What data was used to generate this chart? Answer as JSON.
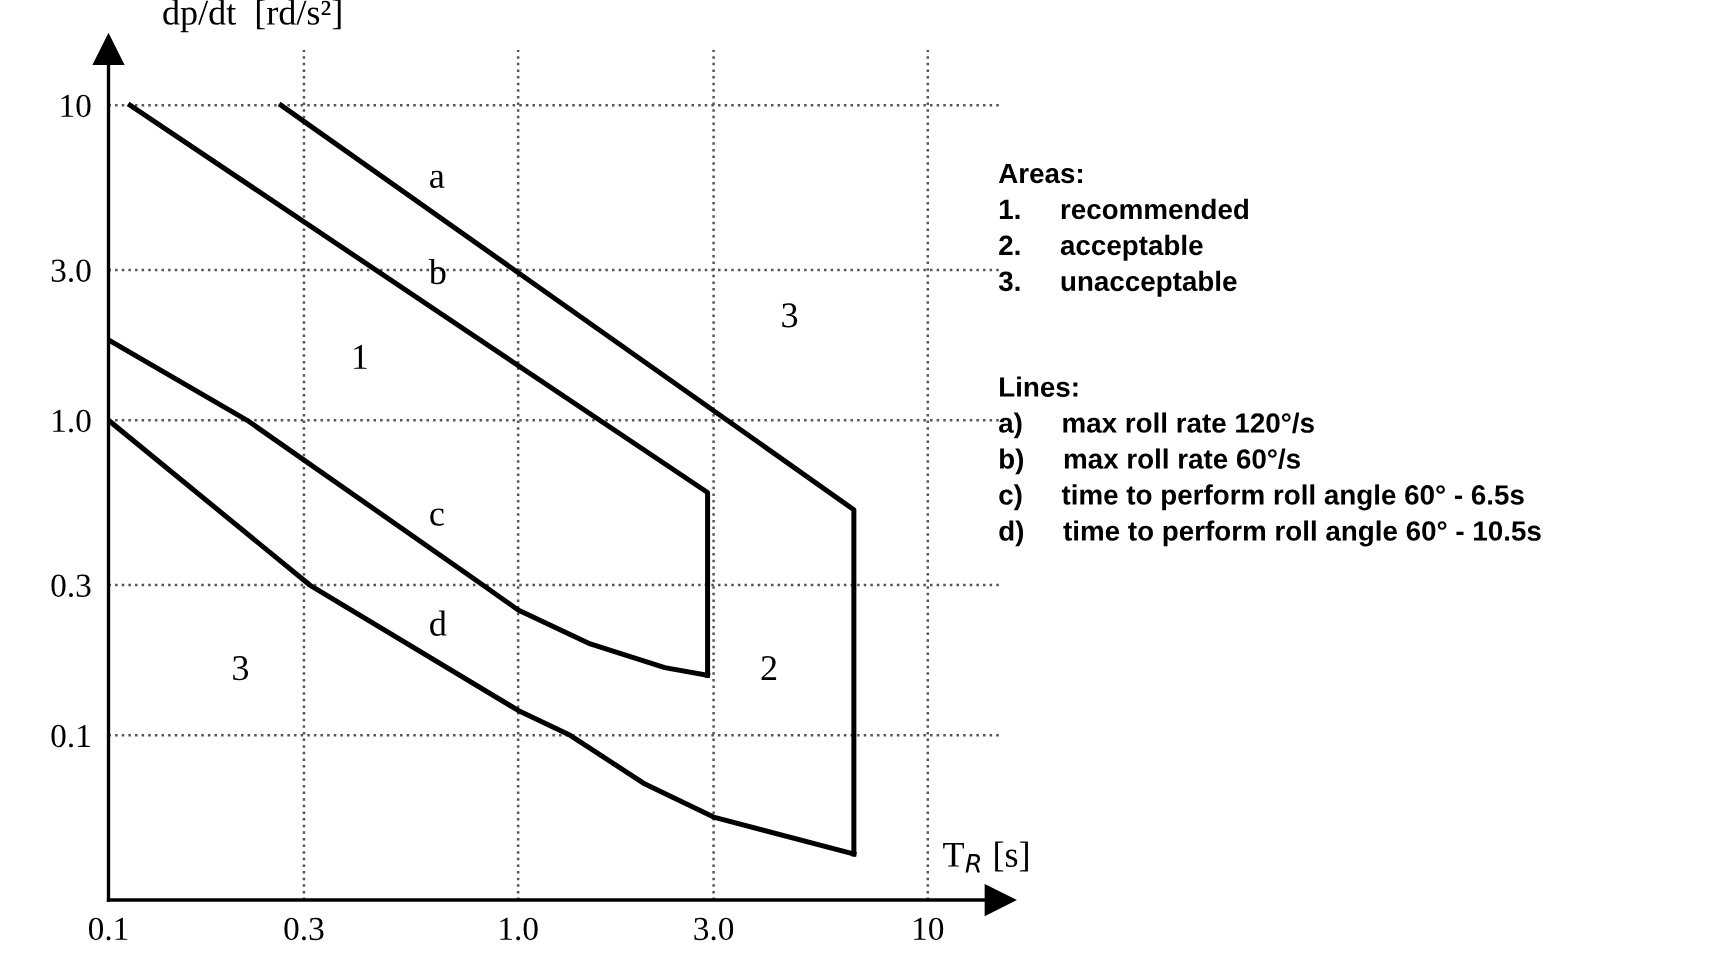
{
  "chart_data": {
    "type": "line",
    "xlabel": "T$_{R}$ [s]",
    "ylabel": "dp/dt  [rd/s²]",
    "log": "xy",
    "grid": true,
    "legend": false,
    "marker": "none",
    "line_style": "solid",
    "xlim": [
      0.1,
      15
    ],
    "ylim": [
      0.03,
      15
    ],
    "xticks": [
      {
        "value": 0.1,
        "label": "0.1"
      },
      {
        "value": 0.3,
        "label": "0.3"
      },
      {
        "value": 1,
        "label": "1.0"
      },
      {
        "value": 3,
        "label": "3.0"
      },
      {
        "value": 10,
        "label": "10"
      }
    ],
    "yticks": [
      {
        "value": 0.1,
        "label": "0.1"
      },
      {
        "value": 0.3,
        "label": "0.3"
      },
      {
        "value": 1,
        "label": "1.0"
      },
      {
        "value": 3,
        "label": "3.0"
      },
      {
        "value": 10,
        "label": "10"
      }
    ],
    "series": [
      {
        "name": "a",
        "color": "#000000",
        "x": [
          0.264,
          6.6,
          6.6
        ],
        "values": [
          10,
          0.52,
          0.042
        ]
      },
      {
        "name": "b",
        "color": "#000000",
        "x": [
          0.113,
          2.9,
          2.9
        ],
        "values": [
          10,
          0.59,
          0.155
        ]
      },
      {
        "name": "c",
        "color": "#000000",
        "x": [
          0.1,
          0.218,
          0.82,
          1.0,
          1.5,
          2.28,
          2.9
        ],
        "values": [
          1.8,
          1.0,
          0.3,
          0.25,
          0.195,
          0.164,
          0.155
        ]
      },
      {
        "name": "d",
        "color": "#000000",
        "x": [
          0.1,
          0.31,
          1.0,
          1.34,
          2.04,
          3.0,
          6.6
        ],
        "values": [
          1.0,
          0.3,
          0.12,
          0.1,
          0.07,
          0.055,
          0.042
        ]
      }
    ],
    "annotations": [
      "1",
      "3",
      "3",
      "2",
      "Areas:\n1.     recommended\n2.     acceptable\n3.     unacceptable",
      "Lines:\na)     max roll rate 120°/s\nb)     max roll rate 60°/s\nc)     time to perform roll angle 60° - 6.5s\nd)     time to perform roll angle 60° - 10.5s"
    ]
  }
}
